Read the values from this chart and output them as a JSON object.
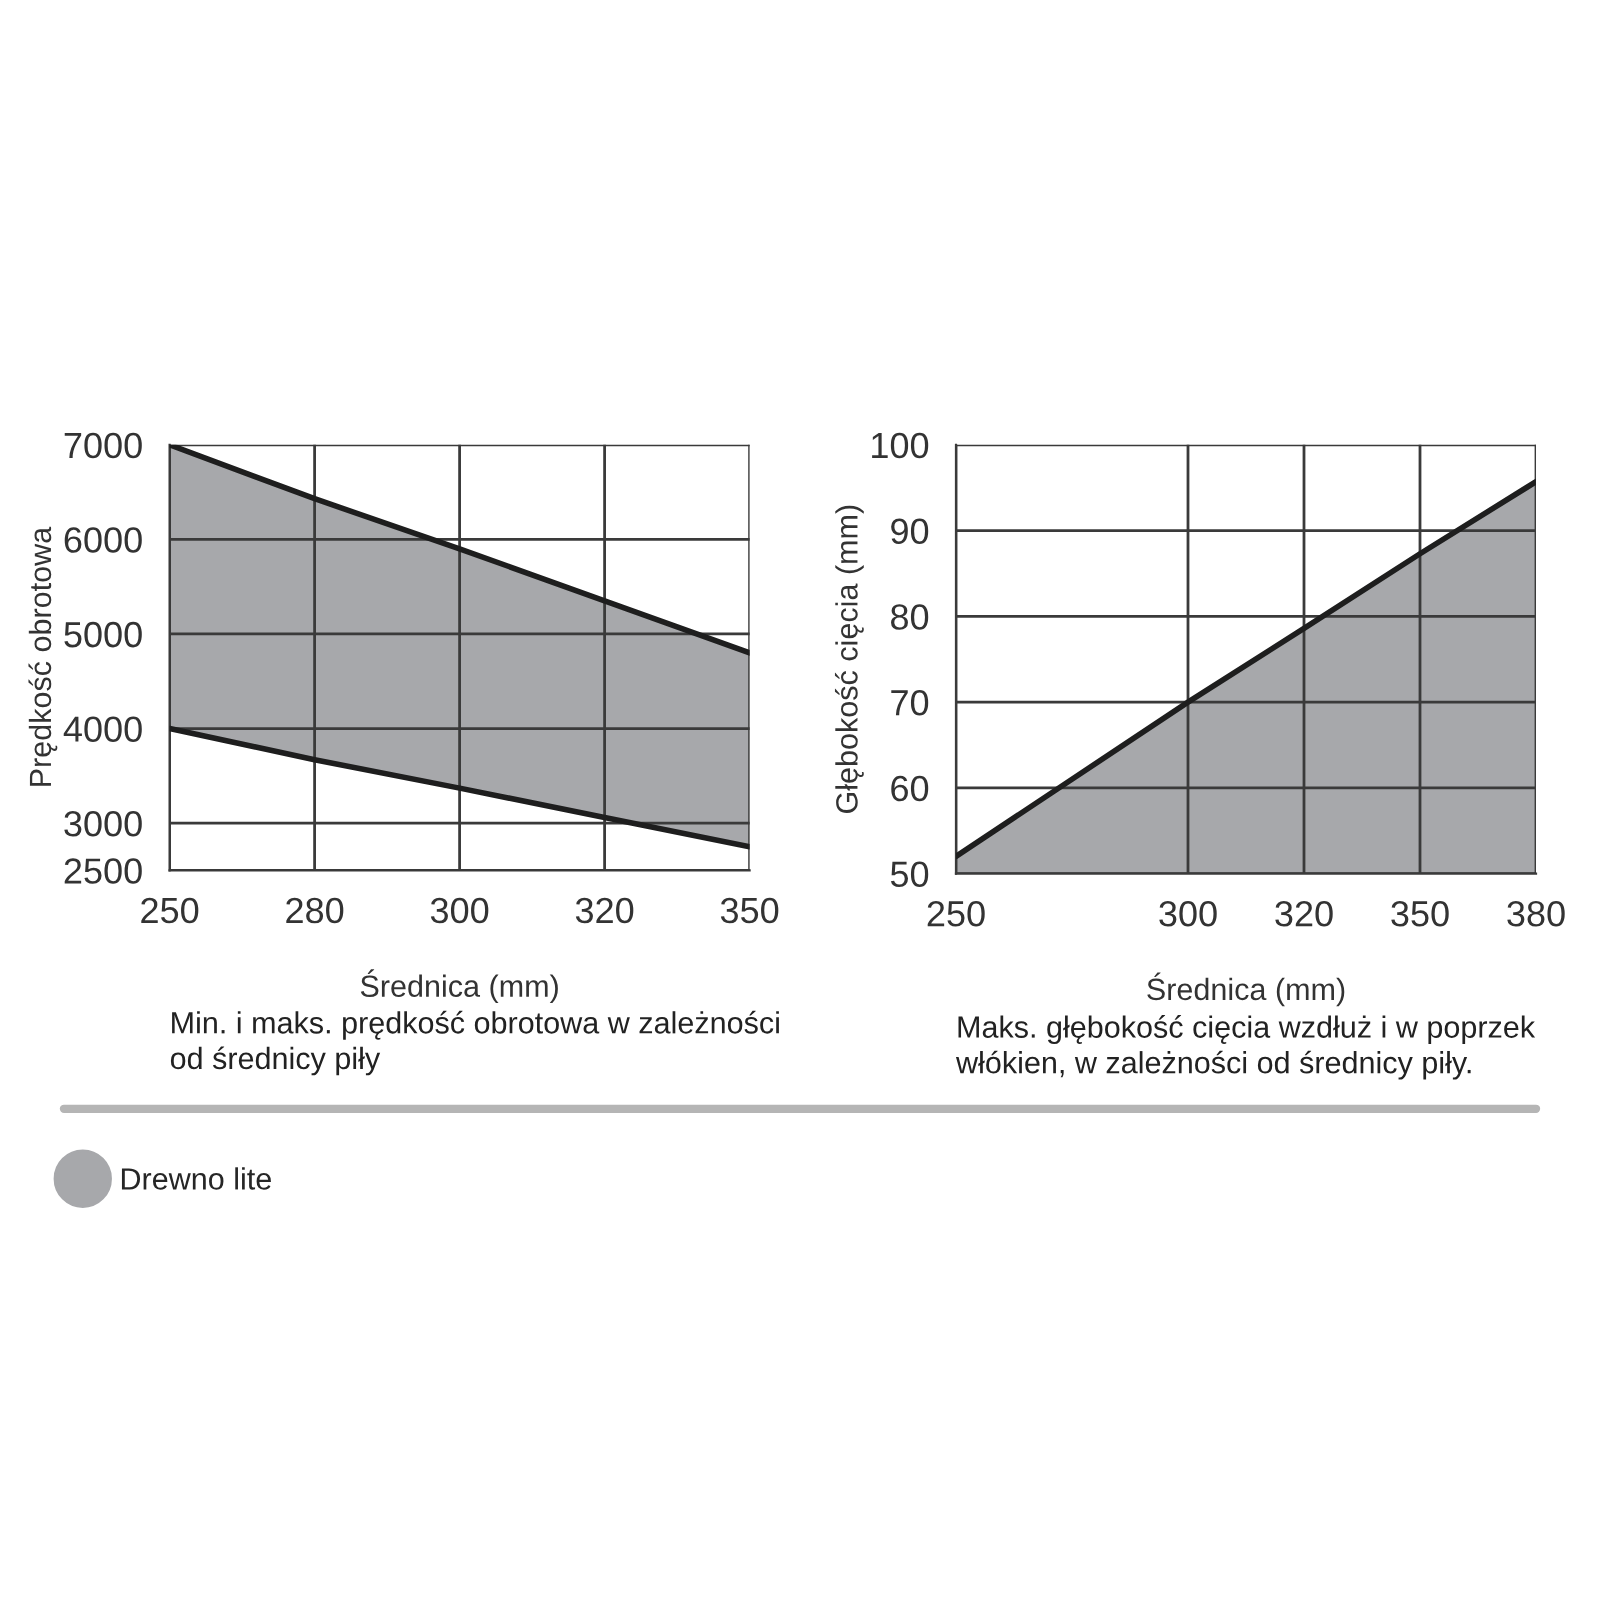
{
  "chart_data": [
    {
      "type": "area",
      "categories": [
        "250",
        "280",
        "300",
        "320",
        "350"
      ],
      "xlabel": "Średnica (mm)",
      "ylabel": "Prędkość obrotowa",
      "series": [
        {
          "name": "Drewno lite",
          "color": "#a7a8ab",
          "values": [
            7000,
            6430,
            5900,
            5350,
            4800
          ]
        },
        {
          "color": "#ffffff",
          "values": [
            4000,
            3670,
            3370,
            3060,
            2750
          ]
        }
      ],
      "ylim": [
        2500,
        7000
      ],
      "yticks": [
        2500,
        3000,
        4000,
        5000,
        6000,
        7000
      ],
      "grid": true,
      "legend": "bottom left",
      "annotations": [
        "Min. i maks. prędkość obrotowa w zależności\nod średnicy piły"
      ]
    },
    {
      "type": "area",
      "categories": [
        "250",
        null,
        "300",
        "320",
        "350",
        "380"
      ],
      "xlabel": "Średnica (mm)",
      "ylabel": "Głębokość cięcia (mm)",
      "series": [
        {
          "name": "Drewno lite",
          "color": "#a7a8ab",
          "values": [
            52,
            61,
            70,
            78.6,
            87.3,
            95.7
          ]
        }
      ],
      "ylim": [
        50,
        100
      ],
      "yticks": [
        50,
        60,
        70,
        80,
        90,
        100
      ],
      "grid": true,
      "annotations": [
        "Maks. głębokość cięcia wzdłuż i w poprzek\nwłókien, w zależności od średnicy piły."
      ]
    }
  ]
}
